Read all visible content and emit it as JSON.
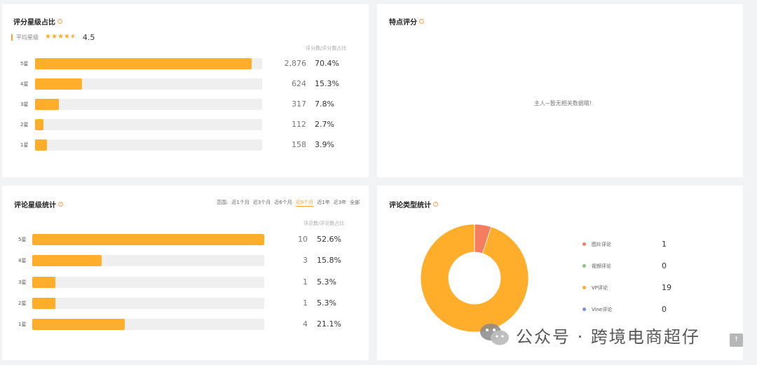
{
  "rating_share": {
    "title": "评分星级占比",
    "avg_label": "平均星级",
    "avg_value": "4.5",
    "avg_stars": 4.5,
    "col_header": "评分数/评分数占比",
    "rows": [
      {
        "label": "5星",
        "count": "2,876",
        "pct": "70.4%",
        "fraction": 0.955
      },
      {
        "label": "4星",
        "count": "624",
        "pct": "15.3%",
        "fraction": 0.208
      },
      {
        "label": "3星",
        "count": "317",
        "pct": "7.8%",
        "fraction": 0.106
      },
      {
        "label": "2星",
        "count": "112",
        "pct": "2.7%",
        "fraction": 0.037
      },
      {
        "label": "1星",
        "count": "158",
        "pct": "3.9%",
        "fraction": 0.052
      }
    ]
  },
  "feature_score": {
    "title": "特点评分",
    "empty_text": "主人~暂无相关数据哦!"
  },
  "review_stats": {
    "title": "评论星级统计",
    "range_label": "范围:",
    "range_options": [
      "近1个月",
      "近3个月",
      "近6个月",
      "近9个月",
      "近1年",
      "近3年",
      "全部"
    ],
    "active_range": "近9个月",
    "col_header": "评论数/评论数占比",
    "rows": [
      {
        "label": "5星",
        "count": "10",
        "pct": "52.6%",
        "fraction": 1.0
      },
      {
        "label": "4星",
        "count": "3",
        "pct": "15.8%",
        "fraction": 0.3
      },
      {
        "label": "3星",
        "count": "1",
        "pct": "5.3%",
        "fraction": 0.1
      },
      {
        "label": "2星",
        "count": "1",
        "pct": "5.3%",
        "fraction": 0.1
      },
      {
        "label": "1星",
        "count": "4",
        "pct": "21.1%",
        "fraction": 0.4
      }
    ]
  },
  "review_type": {
    "title": "评论类型统计",
    "legend": [
      {
        "label": "图片评论",
        "value": "1",
        "color": "#f47e5f"
      },
      {
        "label": "视频评论",
        "value": "0",
        "color": "#8cc37a"
      },
      {
        "label": "VP评论",
        "value": "19",
        "color": "#ffae2b"
      },
      {
        "label": "Vine评论",
        "value": "0",
        "color": "#7b8be0"
      }
    ],
    "chart_data": {
      "type": "pie",
      "categories": [
        "图片评论",
        "视频评论",
        "VP评论",
        "Vine评论"
      ],
      "values": [
        1,
        0,
        19,
        0
      ],
      "colors": [
        "#f47e5f",
        "#8cc37a",
        "#ffae2b",
        "#7b8be0"
      ]
    }
  },
  "watermark": {
    "text": "公众号 · 跨境电商超仔"
  },
  "scroll_top": {
    "glyph": "↑"
  }
}
